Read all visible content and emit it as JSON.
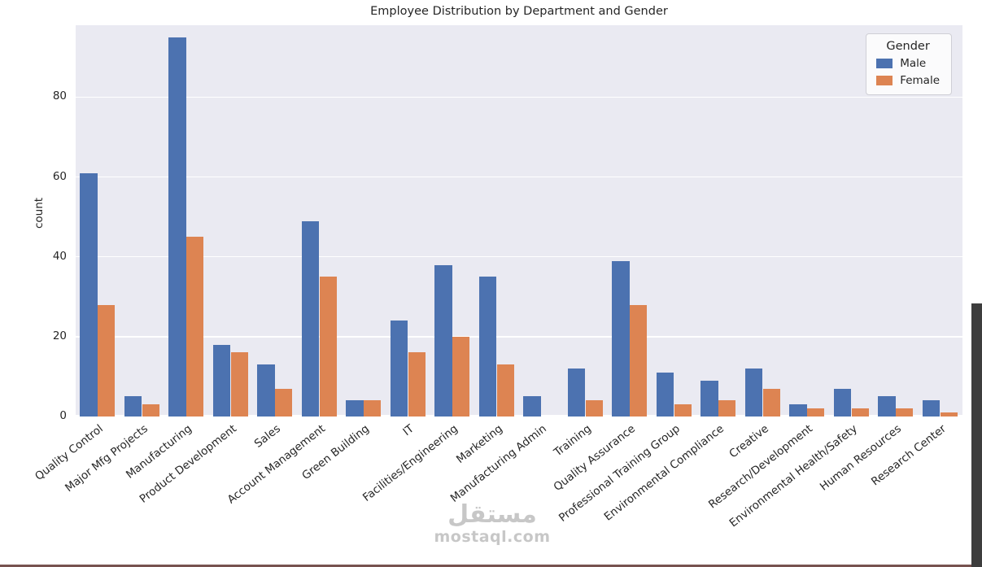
{
  "chart_data": {
    "type": "bar",
    "title": "Employee Distribution by Department and Gender",
    "xlabel": "",
    "ylabel": "count",
    "legend_title": "Gender",
    "legend_position": "upper right",
    "grid": true,
    "plot_bg": "#eaeaf2",
    "grid_color": "#ffffff",
    "ylim": [
      0,
      98
    ],
    "yticks": [
      0,
      20,
      40,
      60,
      80
    ],
    "categories": [
      "Quality Control",
      "Major Mfg Projects",
      "Manufacturing",
      "Product Development",
      "Sales",
      "Account Management",
      "Green Building",
      "IT",
      "Facilities/Engineering",
      "Marketing",
      "Manufacturing Admin",
      "Training",
      "Quality Assurance",
      "Professional Training Group",
      "Environmental Compliance",
      "Creative",
      "Research/Development",
      "Environmental Health/Safety",
      "Human Resources",
      "Research Center"
    ],
    "series": [
      {
        "name": "Male",
        "color": "#4c72b0",
        "values": [
          61,
          5,
          95,
          18,
          13,
          49,
          4,
          24,
          38,
          35,
          5,
          12,
          39,
          11,
          9,
          12,
          3,
          7,
          5,
          4
        ]
      },
      {
        "name": "Female",
        "color": "#dd8452",
        "values": [
          28,
          3,
          45,
          16,
          7,
          35,
          4,
          16,
          20,
          13,
          0,
          4,
          28,
          3,
          4,
          7,
          2,
          2,
          2,
          1
        ]
      }
    ]
  },
  "watermark": {
    "arabic": "مستقل",
    "domain": "mostaql.com"
  },
  "ui": {
    "scrollbar_color": "#3d3d3d"
  }
}
